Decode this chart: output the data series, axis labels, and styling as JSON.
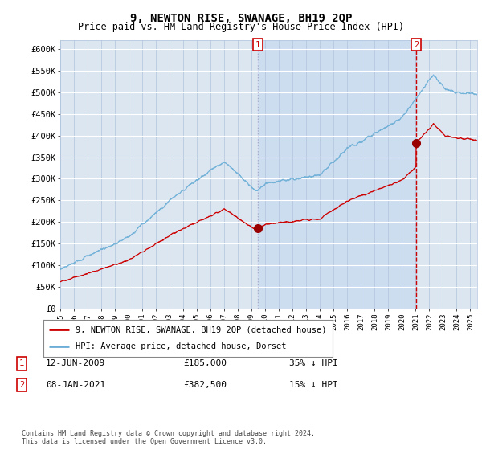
{
  "title": "9, NEWTON RISE, SWANAGE, BH19 2QP",
  "subtitle": "Price paid vs. HM Land Registry's House Price Index (HPI)",
  "ylim": [
    0,
    620000
  ],
  "xlim_start": 1995.0,
  "xlim_end": 2025.5,
  "sale1_date": 2009.45,
  "sale1_price": 185000,
  "sale2_date": 2021.03,
  "sale2_price": 382500,
  "legend_line1": "9, NEWTON RISE, SWANAGE, BH19 2QP (detached house)",
  "legend_line2": "HPI: Average price, detached house, Dorset",
  "footer": "Contains HM Land Registry data © Crown copyright and database right 2024.\nThis data is licensed under the Open Government Licence v3.0.",
  "hpi_color": "#6baed6",
  "price_color": "#cc0000",
  "bg_color": "#dce6f1",
  "shade_color": "#c8daf0",
  "grid_color": "#b8cfe8",
  "sale_marker_color": "#990000"
}
